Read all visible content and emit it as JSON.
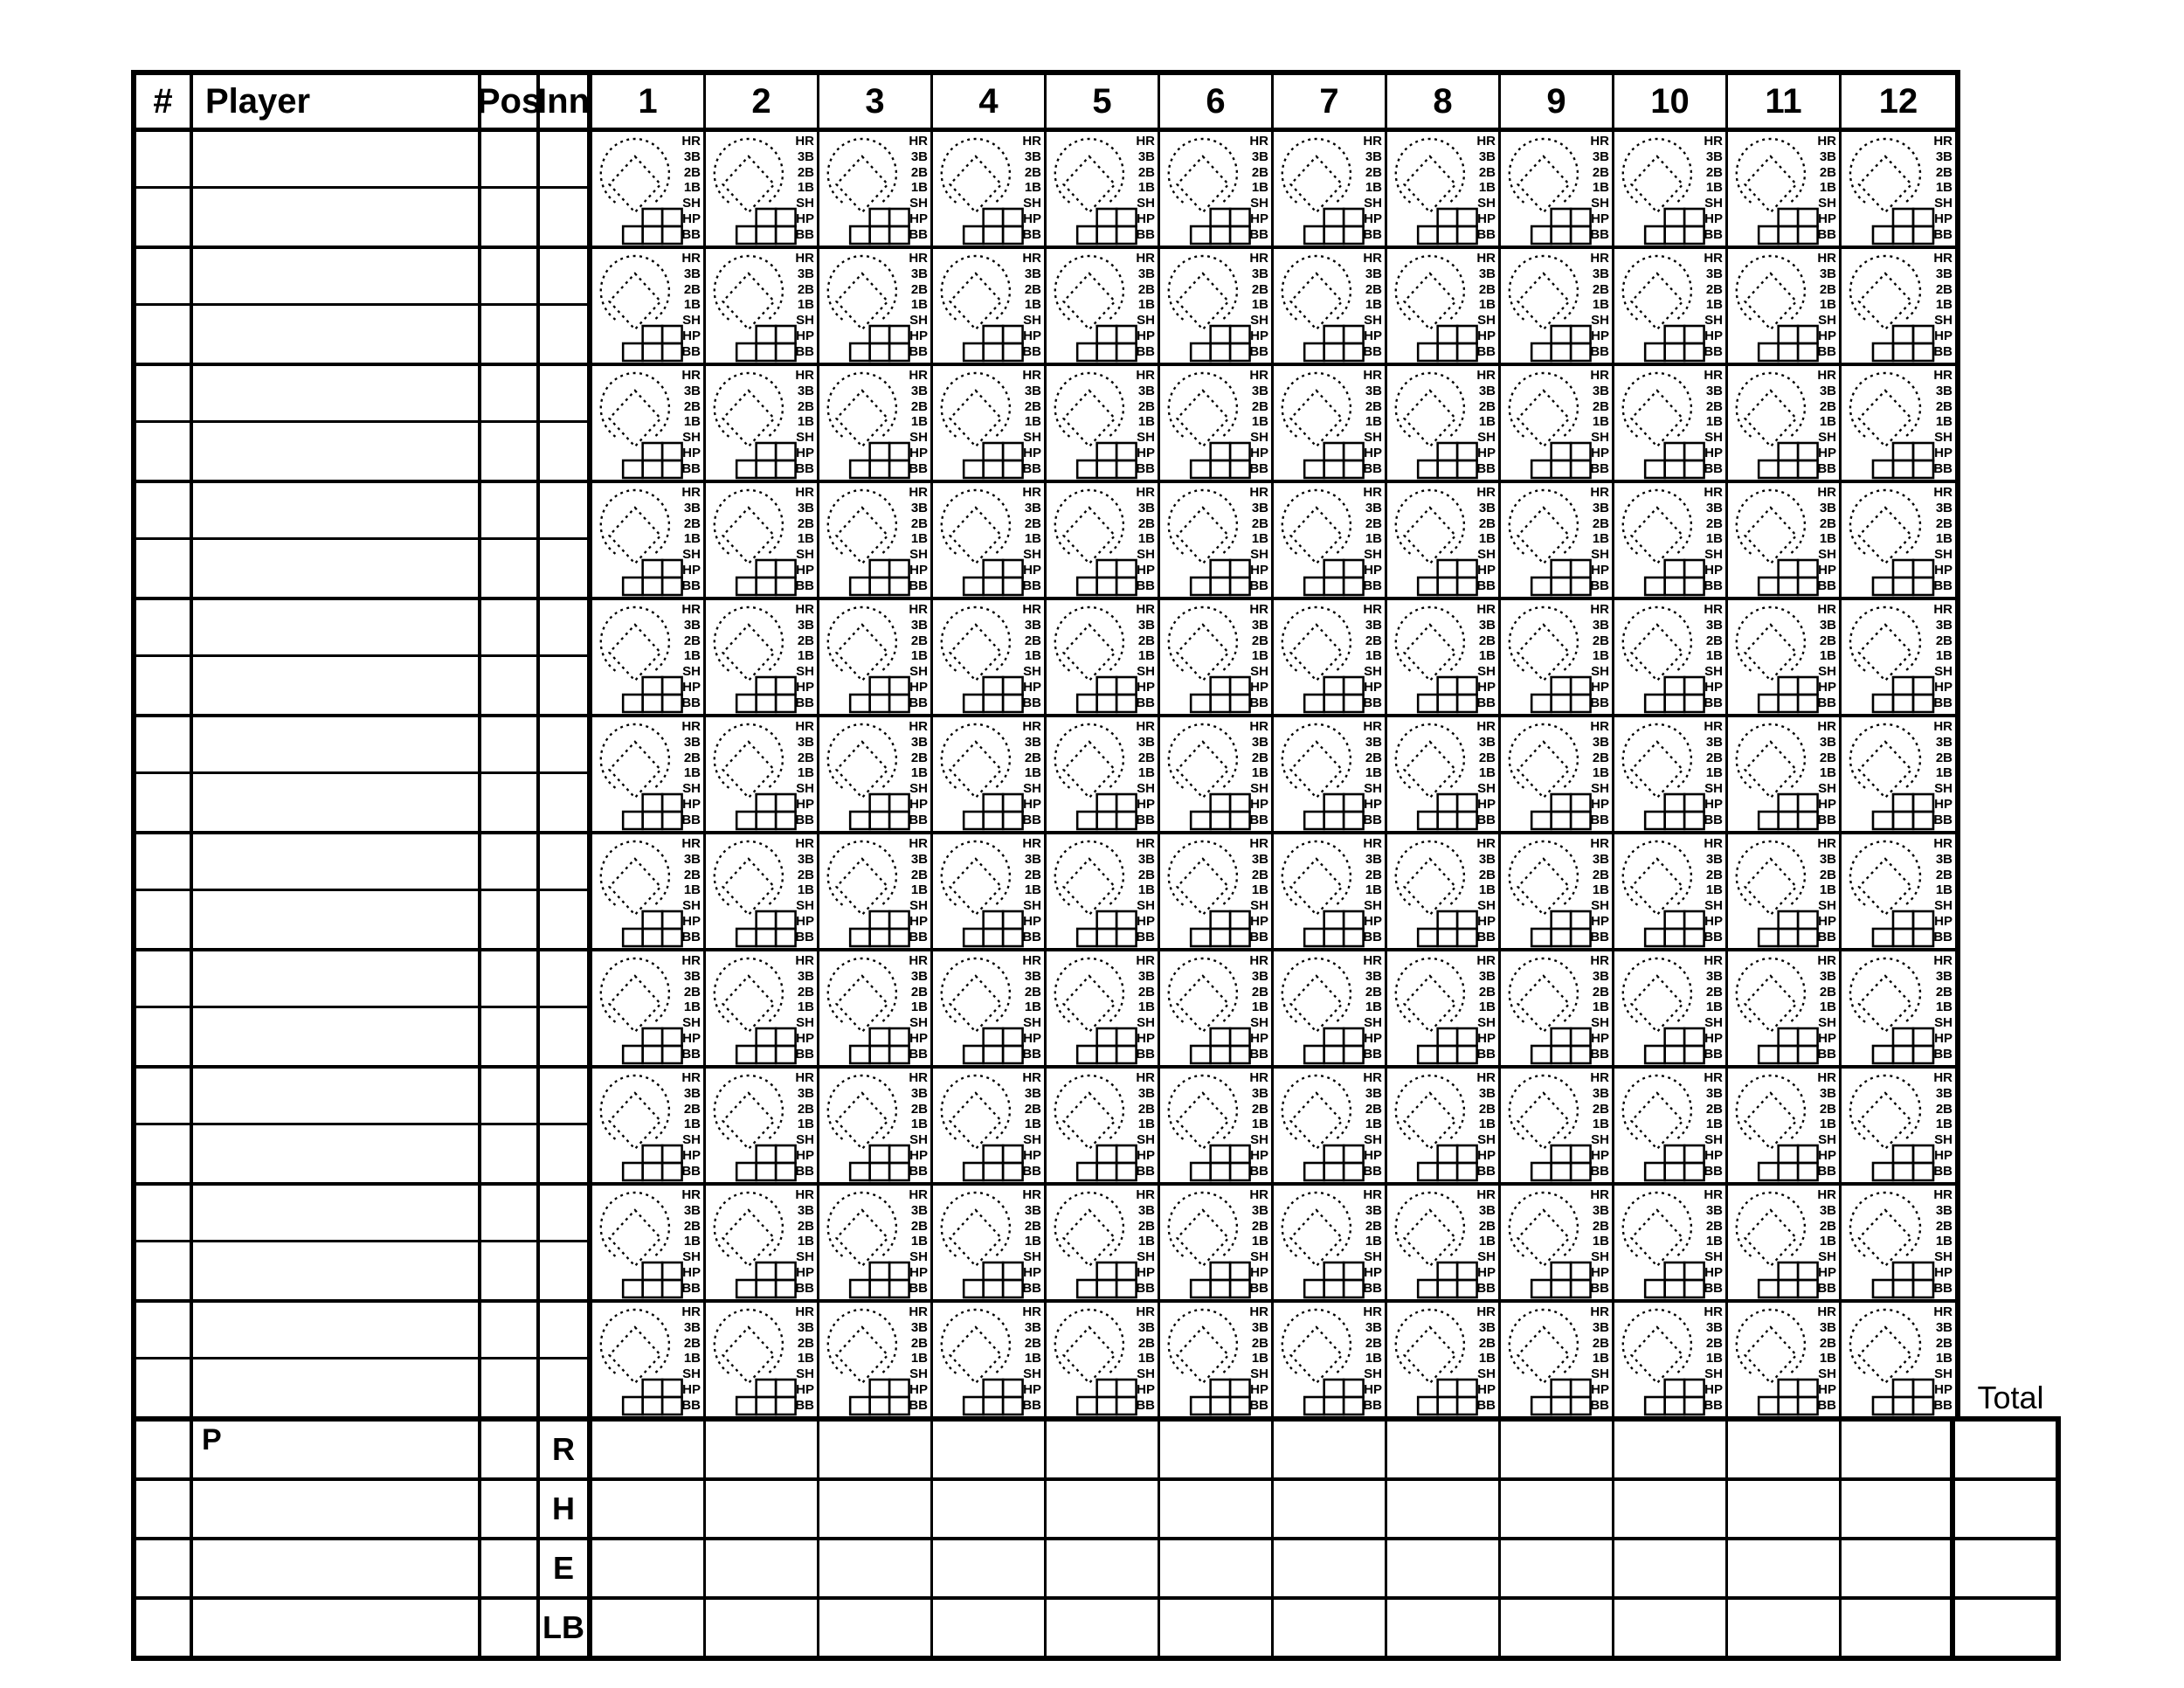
{
  "page": {
    "background": "#ffffff",
    "line_color": "#000000"
  },
  "header": {
    "number": "#",
    "player": "Player",
    "position": "Pos",
    "inning": "Inn",
    "innings": [
      "1",
      "2",
      "3",
      "4",
      "5",
      "6",
      "7",
      "8",
      "9",
      "10",
      "11",
      "12"
    ]
  },
  "grid": {
    "player_rows": 11
  },
  "scorebox": {
    "labels": [
      "HR",
      "3B",
      "2B",
      "1B",
      "SH",
      "HP",
      "BB"
    ]
  },
  "footer": {
    "pitcher_label": "P",
    "row_labels": [
      "R",
      "H",
      "E",
      "LB"
    ],
    "total_label": "Total"
  }
}
